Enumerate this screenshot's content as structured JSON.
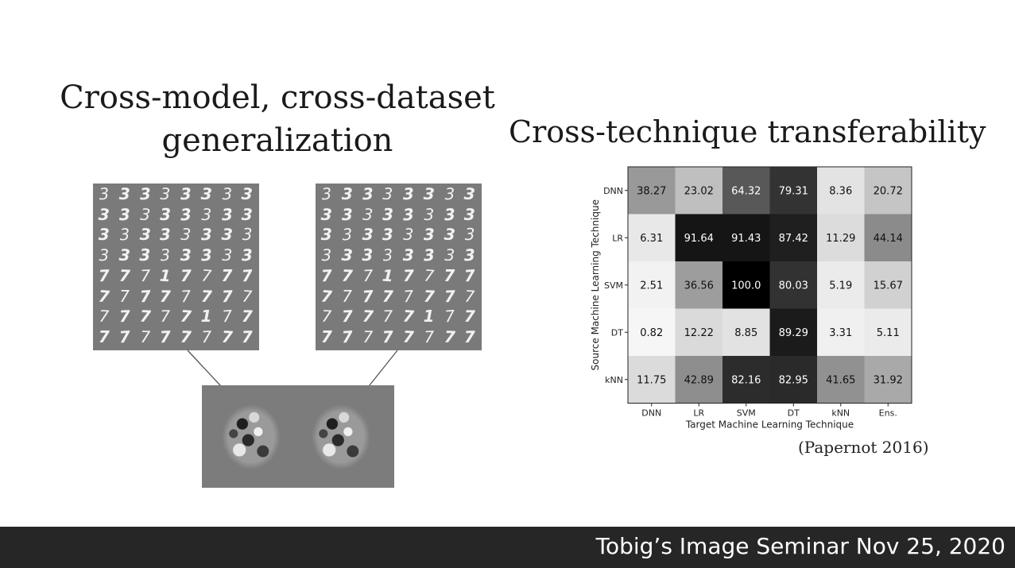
{
  "slide": {
    "title_left_line1": "Cross-model, cross-dataset",
    "title_left_line2": "generalization",
    "title_right": "Cross-technique transferability",
    "citation": "(Papernot 2016)",
    "footer": "Tobig’s Image Seminar Nov 25, 2020",
    "digit_rows": [
      "33333333",
      "33333333",
      "33333333",
      "33333333",
      "77717777",
      "77777777",
      "77777177",
      "77777777"
    ]
  },
  "chart_data": {
    "type": "heatmap",
    "title": "",
    "xlabel": "Target Machine Learning Technique",
    "ylabel": "Source Machine Learning Technique",
    "x_categories": [
      "DNN",
      "LR",
      "SVM",
      "DT",
      "kNN",
      "Ens."
    ],
    "y_categories": [
      "DNN",
      "LR",
      "SVM",
      "DT",
      "kNN"
    ],
    "values": [
      [
        38.27,
        23.02,
        64.32,
        79.31,
        8.36,
        20.72
      ],
      [
        6.31,
        91.64,
        91.43,
        87.42,
        11.29,
        44.14
      ],
      [
        2.51,
        36.56,
        100.0,
        80.03,
        5.19,
        15.67
      ],
      [
        0.82,
        12.22,
        8.85,
        89.29,
        3.31,
        5.11
      ],
      [
        11.75,
        42.89,
        82.16,
        82.95,
        41.65,
        31.92
      ]
    ],
    "value_labels": [
      [
        "38.27",
        "23.02",
        "64.32",
        "79.31",
        "8.36",
        "20.72"
      ],
      [
        "6.31",
        "91.64",
        "91.43",
        "87.42",
        "11.29",
        "44.14"
      ],
      [
        "2.51",
        "36.56",
        "100.0",
        "80.03",
        "5.19",
        "15.67"
      ],
      [
        "0.82",
        "12.22",
        "8.85",
        "89.29",
        "3.31",
        "5.11"
      ],
      [
        "11.75",
        "42.89",
        "82.16",
        "82.95",
        "41.65",
        "31.92"
      ]
    ],
    "value_range": [
      0,
      100
    ],
    "colormap": "grayscale-reversed",
    "grid": false,
    "legend": "none"
  }
}
